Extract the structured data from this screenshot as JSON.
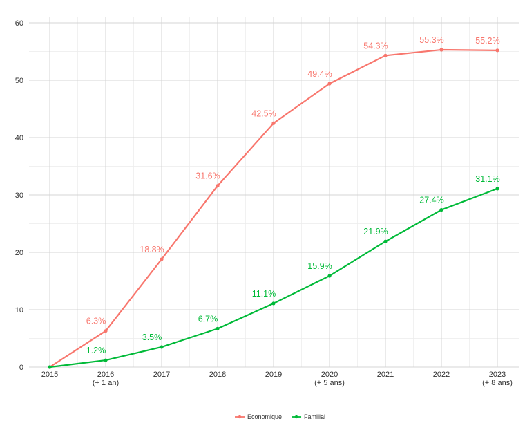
{
  "chart_data": {
    "type": "line",
    "title": "",
    "xlabel": "",
    "ylabel": "",
    "x": [
      "2015",
      "2016",
      "2017",
      "2018",
      "2019",
      "2020",
      "2021",
      "2022",
      "2023"
    ],
    "x_tick_labels": [
      [
        "2015"
      ],
      [
        "2016",
        "(+ 1 an)"
      ],
      [
        "2017"
      ],
      [
        "2018"
      ],
      [
        "2019"
      ],
      [
        "2020",
        "(+ 5 ans)"
      ],
      [
        "2021"
      ],
      [
        "2022"
      ],
      [
        "2023",
        "(+ 8 ans)"
      ]
    ],
    "ylim": [
      0,
      60
    ],
    "y_ticks": [
      0,
      10,
      20,
      30,
      40,
      50,
      60
    ],
    "grid": true,
    "legend_position": "bottom",
    "series": [
      {
        "name": "Economique",
        "color": "#F8766D",
        "values": [
          0,
          6.3,
          18.8,
          31.6,
          42.5,
          49.4,
          54.3,
          55.3,
          55.2
        ],
        "labels": [
          "",
          "6.3%",
          "18.8%",
          "31.6%",
          "42.5%",
          "49.4%",
          "54.3%",
          "55.3%",
          "55.2%"
        ]
      },
      {
        "name": "Familial",
        "color": "#00BA38",
        "values": [
          0,
          1.2,
          3.5,
          6.7,
          11.1,
          15.9,
          21.9,
          27.4,
          31.1
        ],
        "labels": [
          "",
          "1.2%",
          "3.5%",
          "6.7%",
          "11.1%",
          "15.9%",
          "21.9%",
          "27.4%",
          "31.1%"
        ]
      }
    ]
  }
}
